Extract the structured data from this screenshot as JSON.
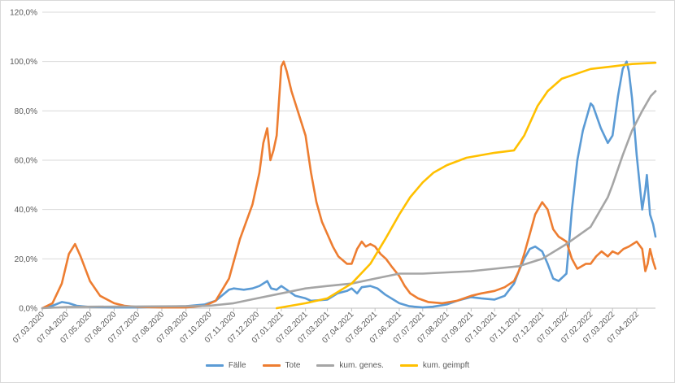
{
  "chart_data": {
    "type": "line",
    "title": "",
    "xlabel": "",
    "ylabel": "",
    "ylim": [
      0,
      120
    ],
    "yticks": [
      "0,0%",
      "20,0%",
      "40,0%",
      "60,0%",
      "80,0%",
      "100,0%",
      "120,0%"
    ],
    "x_start": "07.03.2020",
    "x_end": "01.05.2022",
    "x_tick_labels": [
      "07.03.2020",
      "07.04.2020",
      "07.05.2020",
      "07.06.2020",
      "07.07.2020",
      "07.08.2020",
      "07.09.2020",
      "07.10.2020",
      "07.11.2020",
      "07.12.2020",
      "07.01.2021",
      "07.02.2021",
      "07.03.2021",
      "07.04.2021",
      "07.05.2021",
      "07.06.2021",
      "07.07.2021",
      "07.08.2021",
      "07.09.2021",
      "07.10.2021",
      "07.11.2021",
      "07.12.2021",
      "07.01.2022",
      "07.02.2022",
      "07.03.2022",
      "07.04.2022"
    ],
    "grid": "horizontal",
    "legend_position": "bottom",
    "series": [
      {
        "name": "Fälle",
        "color": "#5b9bd5",
        "points": [
          [
            "07.03.2020",
            0
          ],
          [
            "20.03.2020",
            1
          ],
          [
            "01.04.2020",
            2.5
          ],
          [
            "10.04.2020",
            2
          ],
          [
            "20.04.2020",
            1
          ],
          [
            "07.05.2020",
            0.5
          ],
          [
            "07.06.2020",
            0.3
          ],
          [
            "07.07.2020",
            0.3
          ],
          [
            "07.08.2020",
            0.6
          ],
          [
            "07.09.2020",
            0.8
          ],
          [
            "01.10.2020",
            1.5
          ],
          [
            "15.10.2020",
            3
          ],
          [
            "01.11.2020",
            7.5
          ],
          [
            "07.11.2020",
            8
          ],
          [
            "20.11.2020",
            7.5
          ],
          [
            "01.12.2020",
            8
          ],
          [
            "10.12.2020",
            9
          ],
          [
            "20.12.2020",
            11
          ],
          [
            "25.12.2020",
            8
          ],
          [
            "01.01.2021",
            7.5
          ],
          [
            "07.01.2021",
            9
          ],
          [
            "14.01.2021",
            7.5
          ],
          [
            "25.01.2021",
            5
          ],
          [
            "07.02.2021",
            4
          ],
          [
            "14.02.2021",
            3
          ],
          [
            "07.03.2021",
            3.5
          ],
          [
            "20.03.2021",
            6
          ],
          [
            "01.04.2021",
            7
          ],
          [
            "07.04.2021",
            8
          ],
          [
            "14.04.2021",
            6
          ],
          [
            "20.04.2021",
            8.5
          ],
          [
            "01.05.2021",
            9
          ],
          [
            "10.05.2021",
            8
          ],
          [
            "20.05.2021",
            5.5
          ],
          [
            "07.06.2021",
            2
          ],
          [
            "20.06.2021",
            0.8
          ],
          [
            "07.07.2021",
            0.3
          ],
          [
            "20.07.2021",
            0.6
          ],
          [
            "07.08.2021",
            1.5
          ],
          [
            "20.08.2021",
            3
          ],
          [
            "07.09.2021",
            4.5
          ],
          [
            "20.09.2021",
            4
          ],
          [
            "07.10.2021",
            3.5
          ],
          [
            "20.10.2021",
            5
          ],
          [
            "01.11.2021",
            10
          ],
          [
            "07.11.2021",
            15
          ],
          [
            "14.11.2021",
            20
          ],
          [
            "21.11.2021",
            24
          ],
          [
            "28.11.2021",
            25
          ],
          [
            "07.12.2021",
            23
          ],
          [
            "14.12.2021",
            18
          ],
          [
            "21.12.2021",
            12
          ],
          [
            "28.12.2021",
            11
          ],
          [
            "07.01.2022",
            14
          ],
          [
            "10.01.2022",
            25
          ],
          [
            "14.01.2022",
            40
          ],
          [
            "21.01.2022",
            60
          ],
          [
            "28.01.2022",
            72
          ],
          [
            "07.02.2022",
            83
          ],
          [
            "10.02.2022",
            82
          ],
          [
            "20.02.2022",
            73
          ],
          [
            "01.03.2022",
            67
          ],
          [
            "07.03.2022",
            70
          ],
          [
            "14.03.2022",
            86
          ],
          [
            "20.03.2022",
            97
          ],
          [
            "25.03.2022",
            100
          ],
          [
            "28.03.2022",
            96
          ],
          [
            "01.04.2022",
            85
          ],
          [
            "07.04.2022",
            62
          ],
          [
            "14.04.2022",
            40
          ],
          [
            "18.04.2022",
            48
          ],
          [
            "20.04.2022",
            54
          ],
          [
            "24.04.2022",
            38
          ],
          [
            "28.04.2022",
            34
          ],
          [
            "01.05.2022",
            29
          ]
        ]
      },
      {
        "name": "Tote",
        "color": "#ed7d31",
        "points": [
          [
            "07.03.2020",
            0
          ],
          [
            "20.03.2020",
            2
          ],
          [
            "01.04.2020",
            10
          ],
          [
            "10.04.2020",
            22
          ],
          [
            "18.04.2020",
            26
          ],
          [
            "25.04.2020",
            21
          ],
          [
            "07.05.2020",
            11
          ],
          [
            "20.05.2020",
            5
          ],
          [
            "07.06.2020",
            2
          ],
          [
            "20.06.2020",
            1
          ],
          [
            "07.07.2020",
            0.5
          ],
          [
            "07.08.2020",
            0.3
          ],
          [
            "07.09.2020",
            0.3
          ],
          [
            "01.10.2020",
            1
          ],
          [
            "15.10.2020",
            3
          ],
          [
            "01.11.2020",
            12
          ],
          [
            "15.11.2020",
            28
          ],
          [
            "01.12.2020",
            42
          ],
          [
            "10.12.2020",
            55
          ],
          [
            "15.12.2020",
            67
          ],
          [
            "20.12.2020",
            73
          ],
          [
            "24.12.2020",
            60
          ],
          [
            "28.12.2020",
            64
          ],
          [
            "01.01.2021",
            70
          ],
          [
            "07.01.2021",
            98
          ],
          [
            "10.01.2021",
            100
          ],
          [
            "14.01.2021",
            96
          ],
          [
            "20.01.2021",
            88
          ],
          [
            "28.01.2021",
            80
          ],
          [
            "07.02.2021",
            70
          ],
          [
            "14.02.2021",
            55
          ],
          [
            "21.02.2021",
            43
          ],
          [
            "28.02.2021",
            35
          ],
          [
            "07.03.2021",
            30
          ],
          [
            "14.03.2021",
            25
          ],
          [
            "21.03.2021",
            21
          ],
          [
            "01.04.2021",
            18
          ],
          [
            "07.04.2021",
            18
          ],
          [
            "14.04.2021",
            24
          ],
          [
            "20.04.2021",
            27
          ],
          [
            "25.04.2021",
            25
          ],
          [
            "01.05.2021",
            26
          ],
          [
            "07.05.2021",
            25
          ],
          [
            "14.05.2021",
            22
          ],
          [
            "21.05.2021",
            20
          ],
          [
            "28.05.2021",
            17
          ],
          [
            "07.06.2021",
            13
          ],
          [
            "14.06.2021",
            9
          ],
          [
            "21.06.2021",
            6
          ],
          [
            "01.07.2021",
            4
          ],
          [
            "14.07.2021",
            2.5
          ],
          [
            "01.08.2021",
            2
          ],
          [
            "20.08.2021",
            3
          ],
          [
            "07.09.2021",
            5
          ],
          [
            "20.09.2021",
            6
          ],
          [
            "07.10.2021",
            7
          ],
          [
            "20.10.2021",
            8.5
          ],
          [
            "01.11.2021",
            11
          ],
          [
            "07.11.2021",
            15
          ],
          [
            "14.11.2021",
            22
          ],
          [
            "21.11.2021",
            30
          ],
          [
            "28.11.2021",
            38
          ],
          [
            "07.12.2021",
            43
          ],
          [
            "14.12.2021",
            40
          ],
          [
            "21.12.2021",
            32
          ],
          [
            "28.12.2021",
            29
          ],
          [
            "07.01.2022",
            27
          ],
          [
            "14.01.2022",
            20
          ],
          [
            "21.01.2022",
            16
          ],
          [
            "01.02.2022",
            18
          ],
          [
            "07.02.2022",
            18
          ],
          [
            "14.02.2022",
            21
          ],
          [
            "21.02.2022",
            23
          ],
          [
            "01.03.2022",
            21
          ],
          [
            "07.03.2022",
            23
          ],
          [
            "14.03.2022",
            22
          ],
          [
            "21.03.2022",
            24
          ],
          [
            "28.03.2022",
            25
          ],
          [
            "07.04.2022",
            27
          ],
          [
            "14.04.2022",
            24
          ],
          [
            "18.04.2022",
            15
          ],
          [
            "21.04.2022",
            18
          ],
          [
            "24.04.2022",
            24
          ],
          [
            "28.04.2022",
            19
          ],
          [
            "01.05.2022",
            16
          ]
        ]
      },
      {
        "name": "kum. genes.",
        "color": "#a5a5a5",
        "points": [
          [
            "07.03.2020",
            0
          ],
          [
            "07.04.2020",
            0.5
          ],
          [
            "07.05.2020",
            0.6
          ],
          [
            "07.07.2020",
            0.7
          ],
          [
            "07.09.2020",
            0.8
          ],
          [
            "07.10.2020",
            1
          ],
          [
            "07.11.2020",
            2
          ],
          [
            "07.12.2020",
            4
          ],
          [
            "07.01.2021",
            6
          ],
          [
            "07.02.2021",
            8
          ],
          [
            "07.03.2021",
            9
          ],
          [
            "07.04.2021",
            10
          ],
          [
            "07.05.2021",
            12
          ],
          [
            "07.06.2021",
            14
          ],
          [
            "07.07.2021",
            14
          ],
          [
            "07.08.2021",
            14.5
          ],
          [
            "07.09.2021",
            15
          ],
          [
            "07.10.2021",
            16
          ],
          [
            "07.11.2021",
            17
          ],
          [
            "07.12.2021",
            20
          ],
          [
            "07.01.2022",
            26
          ],
          [
            "07.02.2022",
            33
          ],
          [
            "01.03.2022",
            45
          ],
          [
            "07.03.2022",
            50
          ],
          [
            "20.03.2022",
            62
          ],
          [
            "01.04.2022",
            72
          ],
          [
            "14.04.2022",
            80
          ],
          [
            "25.04.2022",
            86
          ],
          [
            "01.05.2022",
            88
          ]
        ]
      },
      {
        "name": "kum. geimpft",
        "color": "#ffc000",
        "points": [
          [
            "01.01.2021",
            0
          ],
          [
            "07.02.2021",
            2
          ],
          [
            "07.03.2021",
            4
          ],
          [
            "07.04.2021",
            10
          ],
          [
            "01.05.2021",
            18
          ],
          [
            "20.05.2021",
            28
          ],
          [
            "07.06.2021",
            38
          ],
          [
            "21.06.2021",
            45
          ],
          [
            "07.07.2021",
            51
          ],
          [
            "21.07.2021",
            55
          ],
          [
            "07.08.2021",
            58
          ],
          [
            "01.09.2021",
            61
          ],
          [
            "07.10.2021",
            63
          ],
          [
            "01.11.2021",
            64
          ],
          [
            "14.11.2021",
            70
          ],
          [
            "01.12.2021",
            82
          ],
          [
            "14.12.2021",
            88
          ],
          [
            "01.01.2022",
            93
          ],
          [
            "07.02.2022",
            97
          ],
          [
            "07.03.2022",
            98
          ],
          [
            "01.04.2022",
            99
          ],
          [
            "01.05.2022",
            99.5
          ]
        ]
      }
    ]
  }
}
